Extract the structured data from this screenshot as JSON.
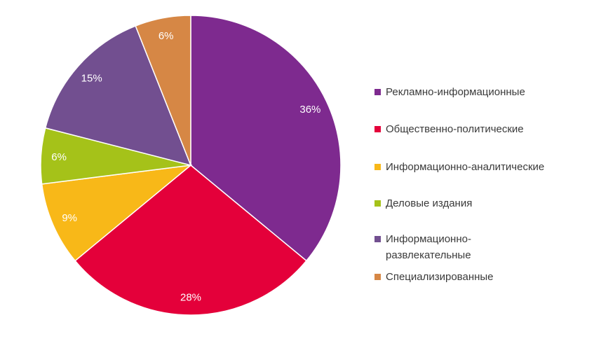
{
  "chart_data": {
    "type": "pie",
    "title": "",
    "start_angle_deg": 0,
    "direction": "clockwise",
    "legend_position": "right",
    "slices": [
      {
        "label": "Рекламно-информационные",
        "value": 36,
        "display": "36%",
        "color": "#7e2a8f"
      },
      {
        "label": "Общественно-политические",
        "value": 28,
        "display": "28%",
        "color": "#e4003a"
      },
      {
        "label": "Информационно-аналитические",
        "value": 9,
        "display": "9%",
        "color": "#f8b818"
      },
      {
        "label": "Деловые издания",
        "value": 6,
        "display": "6%",
        "color": "#a5c219"
      },
      {
        "label": "Информационно-развлекательные",
        "value": 15,
        "display": "15%",
        "color": "#724f90"
      },
      {
        "label": "Специализированные",
        "value": 6,
        "display": "6%",
        "color": "#d68745"
      }
    ]
  }
}
